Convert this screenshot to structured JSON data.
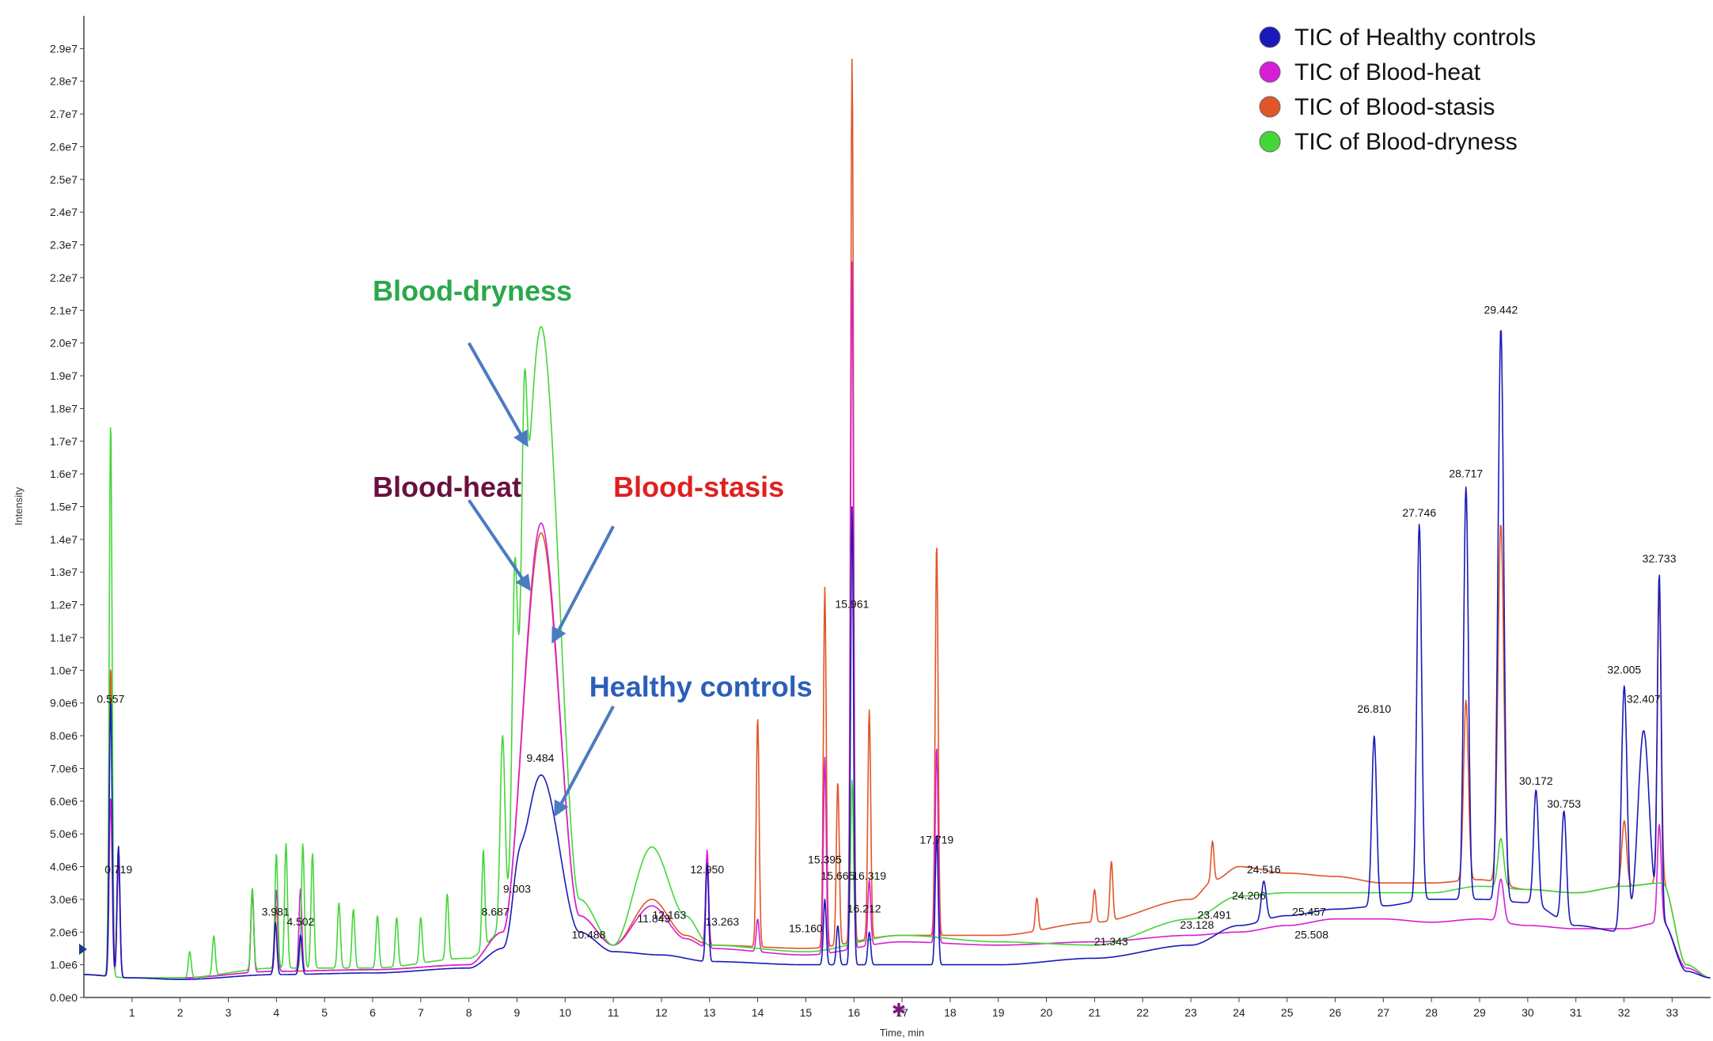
{
  "chart_data": {
    "type": "line",
    "title": "",
    "xlabel": "Time, min",
    "ylabel": "Intensity",
    "xlim": [
      0,
      33.8
    ],
    "ylim": [
      0,
      30000000
    ],
    "grid": false,
    "legend_position": "top-right",
    "x_ticks": [
      "1",
      "2",
      "3",
      "4",
      "5",
      "6",
      "7",
      "8",
      "9",
      "10",
      "11",
      "12",
      "13",
      "14",
      "15",
      "16",
      "17",
      "18",
      "19",
      "20",
      "21",
      "22",
      "23",
      "24",
      "25",
      "26",
      "27",
      "28",
      "29",
      "30",
      "31",
      "32",
      "33"
    ],
    "y_ticks": [
      "0.0e0",
      "1.0e6",
      "2.0e6",
      "3.0e6",
      "4.0e6",
      "5.0e6",
      "6.0e6",
      "7.0e6",
      "8.0e6",
      "9.0e6",
      "1.0e7",
      "1.1e7",
      "1.2e7",
      "1.3e7",
      "1.4e7",
      "1.5e7",
      "1.6e7",
      "1.7e7",
      "1.8e7",
      "1.9e7",
      "2.0e7",
      "2.1e7",
      "2.2e7",
      "2.3e7",
      "2.4e7",
      "2.5e7",
      "2.6e7",
      "2.7e7",
      "2.8e7",
      "2.9e7"
    ],
    "series": [
      {
        "name": "TIC of Healthy controls",
        "color": "#1a1ab8",
        "baseline": [
          [
            0,
            0.7
          ],
          [
            1,
            0.6
          ],
          [
            2,
            0.55
          ],
          [
            4,
            0.7
          ],
          [
            6,
            0.75
          ],
          [
            8,
            0.9
          ],
          [
            8.7,
            1.5
          ],
          [
            9.5,
            6.8
          ],
          [
            10.3,
            2.0
          ],
          [
            11,
            1.4
          ],
          [
            12,
            1.3
          ],
          [
            13,
            1.1
          ],
          [
            15,
            1.0
          ],
          [
            16.5,
            1.0
          ],
          [
            17,
            1.0
          ],
          [
            19,
            1.0
          ],
          [
            21,
            1.2
          ],
          [
            23,
            1.6
          ],
          [
            24,
            2.2
          ],
          [
            25,
            2.5
          ],
          [
            26,
            2.7
          ],
          [
            27,
            2.8
          ],
          [
            28,
            3.0
          ],
          [
            29,
            3.0
          ],
          [
            30,
            2.9
          ],
          [
            31,
            2.2
          ],
          [
            32,
            2.0
          ],
          [
            32.8,
            2.3
          ],
          [
            33.3,
            0.8
          ],
          [
            33.8,
            0.6
          ]
        ],
        "peaks": [
          [
            0.557,
            8.5,
            0.03
          ],
          [
            0.719,
            4.0,
            0.03
          ],
          [
            3.981,
            1.6,
            0.03
          ],
          [
            4.502,
            1.2,
            0.03
          ],
          [
            9.003,
            1.0,
            0.1
          ],
          [
            12.95,
            3.0,
            0.03
          ],
          [
            15.395,
            2.0,
            0.03
          ],
          [
            15.665,
            1.2,
            0.03
          ],
          [
            15.961,
            14.0,
            0.03
          ],
          [
            16.319,
            1.0,
            0.03
          ],
          [
            17.719,
            4.0,
            0.03
          ],
          [
            24.516,
            1.2,
            0.05
          ],
          [
            26.81,
            5.2,
            0.05
          ],
          [
            27.746,
            11.5,
            0.05
          ],
          [
            28.717,
            12.6,
            0.05
          ],
          [
            29.442,
            17.5,
            0.06
          ],
          [
            30.172,
            3.5,
            0.05
          ],
          [
            30.753,
            3.4,
            0.05
          ],
          [
            32.005,
            7.5,
            0.06
          ],
          [
            32.407,
            6.0,
            0.12
          ],
          [
            32.733,
            10.5,
            0.04
          ]
        ]
      },
      {
        "name": "TIC of Blood-heat",
        "color": "#d61fd6",
        "baseline": [
          [
            0,
            0.7
          ],
          [
            1,
            0.6
          ],
          [
            2,
            0.6
          ],
          [
            4,
            0.8
          ],
          [
            6,
            0.85
          ],
          [
            8,
            1.0
          ],
          [
            8.7,
            2.0
          ],
          [
            9.5,
            14.5
          ],
          [
            10.3,
            2.5
          ],
          [
            11,
            1.6
          ],
          [
            11.8,
            2.8
          ],
          [
            12.5,
            1.8
          ],
          [
            13,
            1.5
          ],
          [
            15,
            1.3
          ],
          [
            17,
            1.7
          ],
          [
            19,
            1.6
          ],
          [
            21,
            1.7
          ],
          [
            23,
            1.9
          ],
          [
            24,
            2.0
          ],
          [
            25,
            2.2
          ],
          [
            26,
            2.4
          ],
          [
            27,
            2.4
          ],
          [
            28,
            2.3
          ],
          [
            29,
            2.4
          ],
          [
            30,
            2.2
          ],
          [
            31,
            2.1
          ],
          [
            32,
            2.1
          ],
          [
            32.8,
            2.3
          ],
          [
            33.3,
            0.9
          ],
          [
            33.8,
            0.6
          ]
        ],
        "peaks": [
          [
            0.557,
            5.5,
            0.03
          ],
          [
            0.719,
            3.5,
            0.03
          ],
          [
            3.5,
            2.5,
            0.03
          ],
          [
            4.0,
            2.5,
            0.03
          ],
          [
            4.5,
            2.5,
            0.03
          ],
          [
            12.95,
            3.0,
            0.03
          ],
          [
            14.0,
            1.0,
            0.03
          ],
          [
            15.395,
            6.0,
            0.03
          ],
          [
            15.961,
            21.0,
            0.03
          ],
          [
            16.319,
            2.0,
            0.03
          ],
          [
            17.719,
            6.0,
            0.03
          ],
          [
            29.442,
            1.3,
            0.06
          ],
          [
            32.733,
            3.0,
            0.04
          ]
        ]
      },
      {
        "name": "TIC of Blood-stasis",
        "color": "#e0562a",
        "baseline": [
          [
            0,
            0.7
          ],
          [
            1,
            0.6
          ],
          [
            2,
            0.6
          ],
          [
            4,
            0.8
          ],
          [
            6,
            0.85
          ],
          [
            8,
            1.0
          ],
          [
            8.7,
            2.0
          ],
          [
            9.5,
            14.2
          ],
          [
            10.3,
            2.5
          ],
          [
            11,
            1.6
          ],
          [
            11.8,
            3.0
          ],
          [
            12.5,
            1.9
          ],
          [
            13,
            1.6
          ],
          [
            15,
            1.5
          ],
          [
            17,
            1.9
          ],
          [
            19,
            1.9
          ],
          [
            21,
            2.3
          ],
          [
            23,
            3.0
          ],
          [
            23.5,
            3.6
          ],
          [
            24,
            4.0
          ],
          [
            25,
            3.8
          ],
          [
            26,
            3.7
          ],
          [
            27,
            3.5
          ],
          [
            28,
            3.5
          ],
          [
            29,
            3.6
          ],
          [
            30,
            3.3
          ],
          [
            31,
            3.2
          ],
          [
            32,
            3.4
          ],
          [
            32.8,
            3.5
          ],
          [
            33.3,
            1.0
          ],
          [
            33.8,
            0.6
          ]
        ],
        "peaks": [
          [
            0.557,
            9.5,
            0.03
          ],
          [
            0.719,
            4.0,
            0.03
          ],
          [
            3.5,
            2.5,
            0.03
          ],
          [
            4.0,
            2.0,
            0.03
          ],
          [
            12.95,
            2.8,
            0.03
          ],
          [
            14.0,
            7.0,
            0.03
          ],
          [
            15.395,
            11.0,
            0.03
          ],
          [
            15.665,
            5.0,
            0.03
          ],
          [
            15.961,
            27.0,
            0.03
          ],
          [
            16.319,
            7.0,
            0.03
          ],
          [
            17.719,
            12.0,
            0.03
          ],
          [
            19.8,
            1.0,
            0.03
          ],
          [
            21.0,
            1.0,
            0.03
          ],
          [
            21.35,
            1.8,
            0.03
          ],
          [
            23.45,
            1.2,
            0.03
          ],
          [
            28.717,
            5.5,
            0.05
          ],
          [
            29.442,
            11.0,
            0.06
          ],
          [
            32.005,
            2.0,
            0.05
          ],
          [
            32.733,
            9.0,
            0.04
          ]
        ]
      },
      {
        "name": "TIC of Blood-dryness",
        "color": "#45d63a",
        "baseline": [
          [
            0,
            0.7
          ],
          [
            1,
            0.6
          ],
          [
            2,
            0.6
          ],
          [
            4,
            0.9
          ],
          [
            6,
            0.9
          ],
          [
            8,
            1.2
          ],
          [
            8.7,
            2.0
          ],
          [
            9.5,
            20.5
          ],
          [
            10.3,
            3.0
          ],
          [
            11,
            1.6
          ],
          [
            11.8,
            4.6
          ],
          [
            12.5,
            2.5
          ],
          [
            13,
            1.6
          ],
          [
            15,
            1.4
          ],
          [
            17,
            1.9
          ],
          [
            19,
            1.7
          ],
          [
            21,
            1.6
          ],
          [
            23,
            2.4
          ],
          [
            24,
            3.1
          ],
          [
            25,
            3.2
          ],
          [
            26,
            3.2
          ],
          [
            27,
            3.2
          ],
          [
            28,
            3.2
          ],
          [
            29,
            3.4
          ],
          [
            30,
            3.3
          ],
          [
            31,
            3.2
          ],
          [
            32,
            3.4
          ],
          [
            32.8,
            3.5
          ],
          [
            33.3,
            1.0
          ],
          [
            33.8,
            0.6
          ]
        ],
        "peaks": [
          [
            0.557,
            17.0,
            0.03
          ],
          [
            2.2,
            0.8,
            0.03
          ],
          [
            2.7,
            1.2,
            0.03
          ],
          [
            3.5,
            2.5,
            0.03
          ],
          [
            4.0,
            3.5,
            0.03
          ],
          [
            4.2,
            3.8,
            0.03
          ],
          [
            4.55,
            3.8,
            0.03
          ],
          [
            4.75,
            3.5,
            0.03
          ],
          [
            5.3,
            2.0,
            0.03
          ],
          [
            5.6,
            1.8,
            0.03
          ],
          [
            6.1,
            1.6,
            0.03
          ],
          [
            6.5,
            1.5,
            0.03
          ],
          [
            7.0,
            1.4,
            0.03
          ],
          [
            7.55,
            2.0,
            0.03
          ],
          [
            8.3,
            3.0,
            0.03
          ],
          [
            8.7,
            6.0,
            0.05
          ],
          [
            8.95,
            7.0,
            0.05
          ],
          [
            9.15,
            6.0,
            0.05
          ],
          [
            15.961,
            5.0,
            0.03
          ],
          [
            29.442,
            1.5,
            0.06
          ]
        ]
      }
    ],
    "peak_labels": [
      {
        "text": "0.557",
        "x": 0.557,
        "y": 9.0
      },
      {
        "text": "0.719",
        "x": 0.719,
        "y": 3.8
      },
      {
        "text": "3.981",
        "x": 3.981,
        "y": 2.5
      },
      {
        "text": "4.502",
        "x": 4.502,
        "y": 2.2
      },
      {
        "text": "8.687",
        "x": 8.55,
        "y": 2.5
      },
      {
        "text": "9.003",
        "x": 9.0,
        "y": 3.2
      },
      {
        "text": "9.484",
        "x": 9.484,
        "y": 7.2
      },
      {
        "text": "10.488",
        "x": 10.488,
        "y": 1.8
      },
      {
        "text": "11.843",
        "x": 11.843,
        "y": 2.3
      },
      {
        "text": "12.163",
        "x": 12.163,
        "y": 2.4
      },
      {
        "text": "12.950",
        "x": 12.95,
        "y": 3.8
      },
      {
        "text": "13.263",
        "x": 13.263,
        "y": 2.2
      },
      {
        "text": "15.160",
        "x": 15.0,
        "y": 2.0
      },
      {
        "text": "15.665",
        "x": 15.665,
        "y": 3.6
      },
      {
        "text": "15.395",
        "x": 15.395,
        "y": 4.1
      },
      {
        "text": "15.961",
        "x": 15.961,
        "y": 11.9
      },
      {
        "text": "16.319",
        "x": 16.319,
        "y": 3.6
      },
      {
        "text": "16.212",
        "x": 16.212,
        "y": 2.6
      },
      {
        "text": "17.719",
        "x": 17.719,
        "y": 4.7
      },
      {
        "text": "21.343",
        "x": 21.343,
        "y": 1.6
      },
      {
        "text": "23.128",
        "x": 23.128,
        "y": 2.1
      },
      {
        "text": "23.491",
        "x": 23.491,
        "y": 2.4
      },
      {
        "text": "24.206",
        "x": 24.206,
        "y": 3.0
      },
      {
        "text": "24.516",
        "x": 24.516,
        "y": 3.8
      },
      {
        "text": "25.457",
        "x": 25.457,
        "y": 2.5
      },
      {
        "text": "25.508",
        "x": 25.508,
        "y": 1.8
      },
      {
        "text": "26.810",
        "x": 26.81,
        "y": 8.7
      },
      {
        "text": "27.746",
        "x": 27.746,
        "y": 14.7
      },
      {
        "text": "28.717",
        "x": 28.717,
        "y": 15.9
      },
      {
        "text": "29.442",
        "x": 29.442,
        "y": 20.9
      },
      {
        "text": "30.172",
        "x": 30.172,
        "y": 6.5
      },
      {
        "text": "30.753",
        "x": 30.753,
        "y": 5.8
      },
      {
        "text": "32.005",
        "x": 32.005,
        "y": 9.9
      },
      {
        "text": "32.407",
        "x": 32.407,
        "y": 9.0
      },
      {
        "text": "32.733",
        "x": 32.733,
        "y": 13.3
      }
    ],
    "annotations": [
      {
        "text": "Blood-dryness",
        "color": "#2aa84a",
        "x": 6.0,
        "y": 21.3,
        "arrow": {
          "from_x": 8.0,
          "from_y": 20.0,
          "to_x": 9.2,
          "to_y": 16.9
        }
      },
      {
        "text": "Blood-heat",
        "color": "#6a1040",
        "x": 6.0,
        "y": 15.3,
        "arrow": {
          "from_x": 8.0,
          "from_y": 15.2,
          "to_x": 9.25,
          "to_y": 12.5
        }
      },
      {
        "text": "Blood-stasis",
        "color": "#e02020",
        "x": 11.0,
        "y": 15.3,
        "arrow": {
          "from_x": 11.0,
          "from_y": 14.4,
          "to_x": 9.75,
          "to_y": 10.9
        }
      },
      {
        "text": "Healthy controls",
        "color": "#2a5fb8",
        "x": 10.5,
        "y": 9.2,
        "arrow": {
          "from_x": 11.0,
          "from_y": 8.9,
          "to_x": 9.8,
          "to_y": 5.6
        }
      }
    ]
  }
}
